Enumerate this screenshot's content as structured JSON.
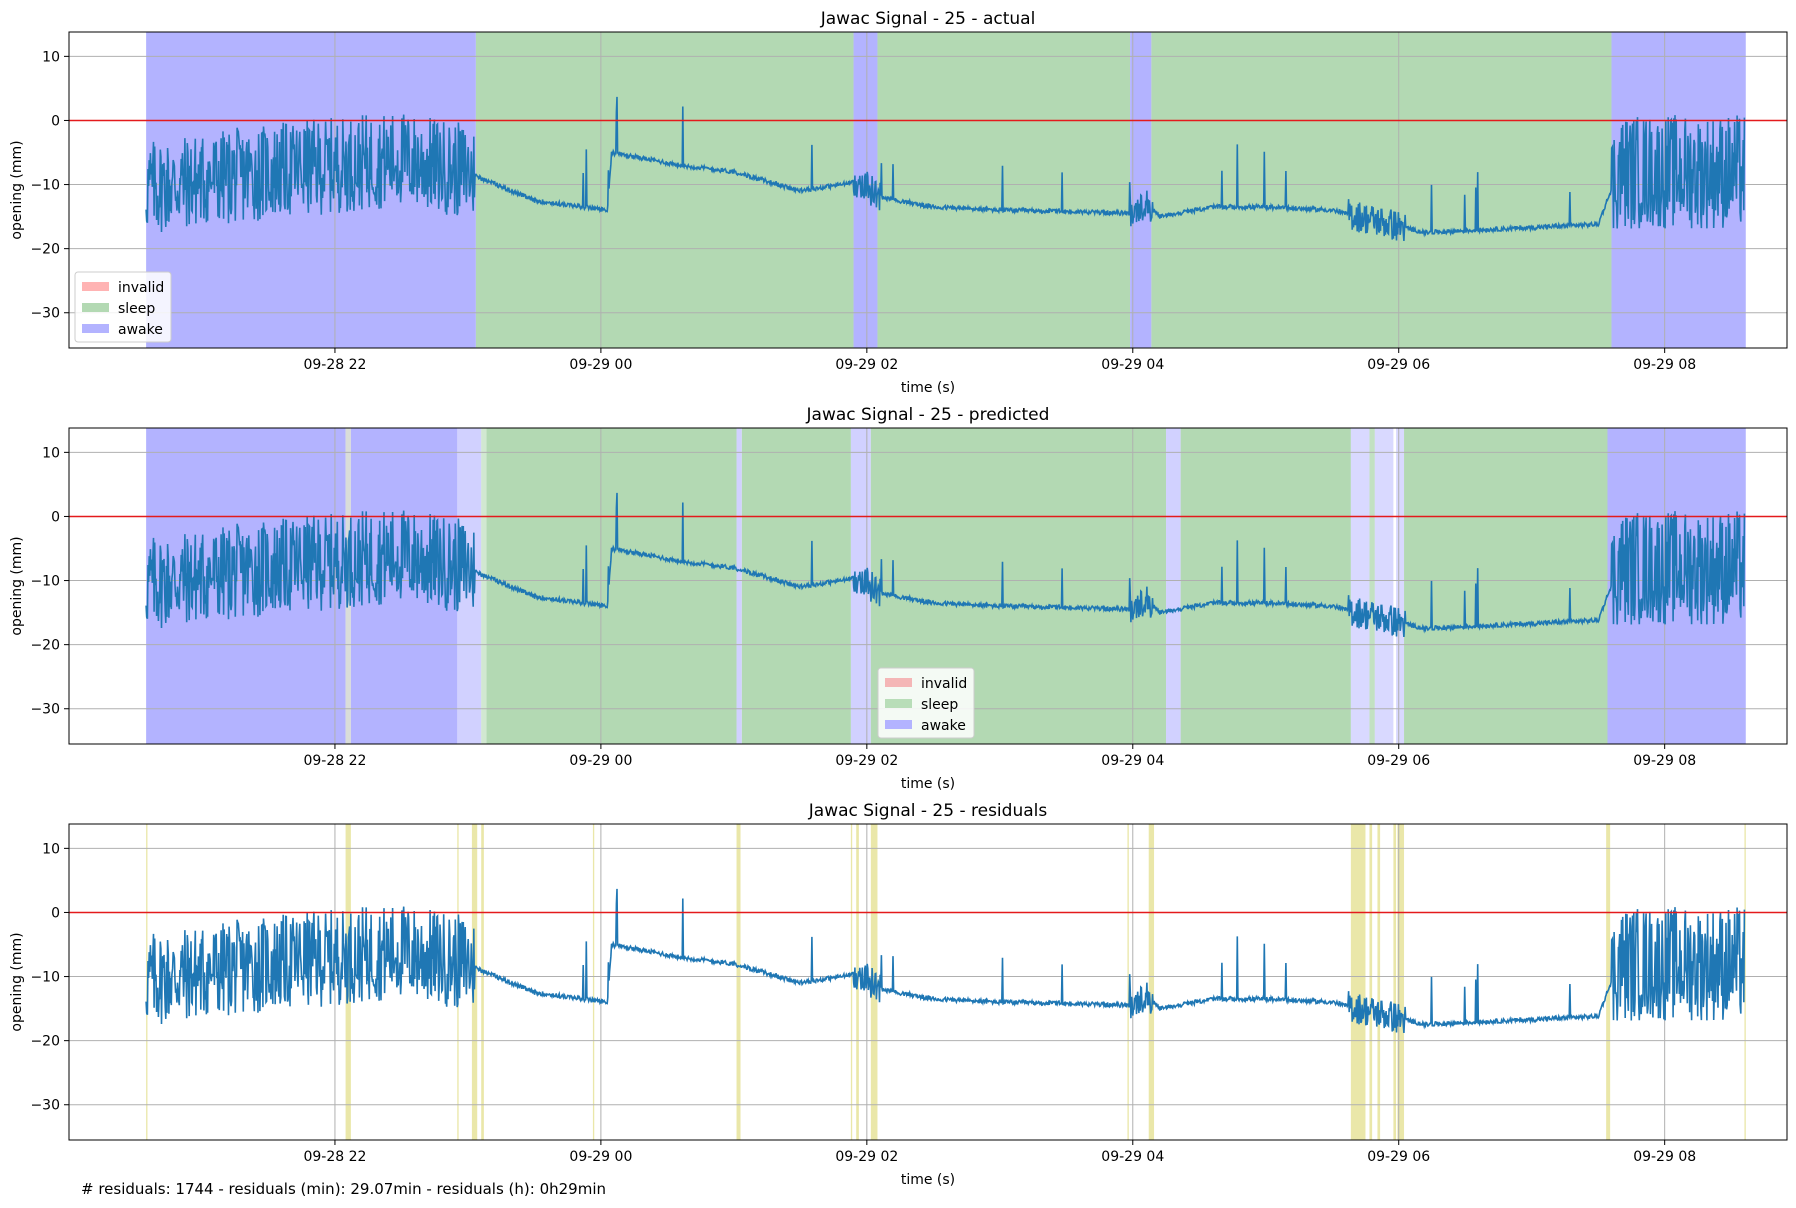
{
  "chart_data": [
    {
      "type": "line",
      "title": "Jawac Signal - 25 - actual",
      "xlabel": "time (s)",
      "ylabel": "opening (mm)",
      "x_ticks": [
        "09-28 22",
        "09-29 00",
        "09-29 02",
        "09-29 04",
        "09-29 06",
        "09-29 08"
      ],
      "y_ticks": [
        "10",
        "0",
        "−10",
        "−20",
        "−30"
      ],
      "xlim_hours": [
        20.0,
        32.92
      ],
      "ylim": [
        -35.5,
        13.8
      ],
      "grid": true,
      "reference_line": {
        "y": 0,
        "color": "#e41a1c"
      },
      "legend": {
        "position": "lower-left",
        "entries": [
          {
            "label": "invalid",
            "color": "#ffb3b3"
          },
          {
            "label": "sleep",
            "color": "#b3d9b3"
          },
          {
            "label": "awake",
            "color": "#b3b3ff"
          }
        ]
      },
      "spans": [
        {
          "label": "awake",
          "from": 20.58,
          "to": 23.06
        },
        {
          "label": "sleep",
          "from": 23.06,
          "to": 25.9
        },
        {
          "label": "awake",
          "from": 25.9,
          "to": 26.08
        },
        {
          "label": "sleep",
          "from": 26.08,
          "to": 27.98
        },
        {
          "label": "awake",
          "from": 27.98,
          "to": 28.14
        },
        {
          "label": "sleep",
          "from": 28.14,
          "to": 31.6
        },
        {
          "label": "awake",
          "from": 31.6,
          "to": 32.61
        }
      ],
      "signal": {
        "color": "#1f77b4",
        "x": [
          20.58,
          21.5,
          22.5,
          23.0,
          23.1,
          23.5,
          24.05,
          24.08,
          24.6,
          25.0,
          25.5,
          25.95,
          26.1,
          26.5,
          27.0,
          27.5,
          28.0,
          28.1,
          28.2,
          28.6,
          29.0,
          29.5,
          29.9,
          30.2,
          30.7,
          31.2,
          31.5,
          31.65,
          32.0,
          32.6
        ],
        "y": [
          -10.5,
          -8,
          -6,
          -8,
          -9,
          -12.5,
          -14,
          -5,
          -7,
          -8,
          -11,
          -9.5,
          -12,
          -13.5,
          -14,
          -14.2,
          -14.5,
          -13,
          -15,
          -13.5,
          -13.5,
          -14,
          -16,
          -17.5,
          -17,
          -16.5,
          -16.2,
          -8,
          -8,
          -8
        ]
      }
    },
    {
      "type": "line",
      "title": "Jawac Signal - 25 - predicted",
      "xlabel": "time (s)",
      "ylabel": "opening (mm)",
      "x_ticks": [
        "09-28 22",
        "09-29 00",
        "09-29 02",
        "09-29 04",
        "09-29 06",
        "09-29 08"
      ],
      "y_ticks": [
        "10",
        "0",
        "−10",
        "−20",
        "−30"
      ],
      "xlim_hours": [
        20.0,
        32.92
      ],
      "ylim": [
        -35.5,
        13.8
      ],
      "grid": true,
      "reference_line": {
        "y": 0,
        "color": "#e41a1c"
      },
      "legend": {
        "position": "lower-center",
        "entries": [
          {
            "label": "invalid",
            "color": "#f4b6b6"
          },
          {
            "label": "sleep",
            "color": "#b8ddb8"
          },
          {
            "label": "awake",
            "color": "#b3b3ff"
          }
        ]
      },
      "spans": [
        {
          "label": "awake",
          "from": 20.58,
          "to": 22.08,
          "alpha": 1
        },
        {
          "label": "mixed",
          "from": 22.08,
          "to": 22.12,
          "alpha": 1
        },
        {
          "label": "awake",
          "from": 22.12,
          "to": 22.92,
          "alpha": 1
        },
        {
          "label": "awake",
          "from": 22.92,
          "to": 23.1,
          "alpha": 0.6
        },
        {
          "label": "sleep",
          "from": 23.1,
          "to": 23.14,
          "alpha": 0.6
        },
        {
          "label": "sleep",
          "from": 23.14,
          "to": 25.02,
          "alpha": 1
        },
        {
          "label": "awake",
          "from": 25.02,
          "to": 25.06,
          "alpha": 0.6
        },
        {
          "label": "sleep",
          "from": 25.06,
          "to": 25.88,
          "alpha": 1
        },
        {
          "label": "awake",
          "from": 25.88,
          "to": 26.03,
          "alpha": 0.6
        },
        {
          "label": "sleep",
          "from": 26.03,
          "to": 28.25,
          "alpha": 1
        },
        {
          "label": "awake",
          "from": 28.25,
          "to": 28.36,
          "alpha": 0.6
        },
        {
          "label": "sleep",
          "from": 28.36,
          "to": 29.64,
          "alpha": 1
        },
        {
          "label": "awake",
          "from": 29.64,
          "to": 29.78,
          "alpha": 0.5
        },
        {
          "label": "sleep",
          "from": 29.78,
          "to": 29.82,
          "alpha": 0.8
        },
        {
          "label": "awake",
          "from": 29.82,
          "to": 29.96,
          "alpha": 0.5
        },
        {
          "label": "awake",
          "from": 29.98,
          "to": 30.04,
          "alpha": 0.5
        },
        {
          "label": "sleep",
          "from": 30.04,
          "to": 31.57,
          "alpha": 1
        },
        {
          "label": "awake",
          "from": 31.57,
          "to": 32.61,
          "alpha": 1
        }
      ],
      "signal": {
        "color": "#1f77b4",
        "x": [
          20.58,
          21.5,
          22.5,
          23.0,
          23.1,
          23.5,
          24.05,
          24.08,
          24.6,
          25.0,
          25.5,
          25.95,
          26.1,
          26.5,
          27.0,
          27.5,
          28.0,
          28.1,
          28.2,
          28.6,
          29.0,
          29.5,
          29.9,
          30.2,
          30.7,
          31.2,
          31.5,
          31.65,
          32.0,
          32.6
        ],
        "y": [
          -10.5,
          -8,
          -6,
          -8,
          -9,
          -12.5,
          -14,
          -5,
          -7,
          -8,
          -11,
          -9.5,
          -12,
          -13.5,
          -14,
          -14.2,
          -14.5,
          -13,
          -15,
          -13.5,
          -13.5,
          -14,
          -16,
          -17.5,
          -17,
          -16.5,
          -16.2,
          -8,
          -8,
          -8
        ]
      }
    },
    {
      "type": "line",
      "title": "Jawac Signal - 25 - residuals",
      "xlabel": "time (s)",
      "ylabel": "opening (mm)",
      "x_ticks": [
        "09-28 22",
        "09-29 00",
        "09-29 02",
        "09-29 04",
        "09-29 06",
        "09-29 08"
      ],
      "y_ticks": [
        "10",
        "0",
        "−10",
        "−20",
        "−30"
      ],
      "xlim_hours": [
        20.0,
        32.92
      ],
      "ylim": [
        -35.5,
        13.8
      ],
      "grid": true,
      "reference_line": {
        "y": 0,
        "color": "#e41a1c"
      },
      "residual_color": "#e6e39a",
      "residual_spans": [
        {
          "from": 20.58,
          "to": 20.59
        },
        {
          "from": 22.08,
          "to": 22.12
        },
        {
          "from": 22.92,
          "to": 22.93
        },
        {
          "from": 23.03,
          "to": 23.07
        },
        {
          "from": 23.1,
          "to": 23.12
        },
        {
          "from": 23.94,
          "to": 23.95
        },
        {
          "from": 25.02,
          "to": 25.05
        },
        {
          "from": 25.88,
          "to": 25.89
        },
        {
          "from": 25.92,
          "to": 25.94
        },
        {
          "from": 26.03,
          "to": 26.08
        },
        {
          "from": 27.96,
          "to": 27.97
        },
        {
          "from": 28.12,
          "to": 28.16
        },
        {
          "from": 29.64,
          "to": 29.75
        },
        {
          "from": 29.78,
          "to": 29.8
        },
        {
          "from": 29.84,
          "to": 29.86
        },
        {
          "from": 29.96,
          "to": 29.98
        },
        {
          "from": 29.99,
          "to": 30.04
        },
        {
          "from": 31.56,
          "to": 31.59
        },
        {
          "from": 32.6,
          "to": 32.61
        }
      ],
      "signal": {
        "color": "#1f77b4",
        "x": [
          20.58,
          21.5,
          22.5,
          23.0,
          23.1,
          23.5,
          24.05,
          24.08,
          24.6,
          25.0,
          25.5,
          25.95,
          26.1,
          26.5,
          27.0,
          27.5,
          28.0,
          28.1,
          28.2,
          28.6,
          29.0,
          29.5,
          29.9,
          30.2,
          30.7,
          31.2,
          31.5,
          31.65,
          32.0,
          32.6
        ],
        "y": [
          -10.5,
          -8,
          -6,
          -8,
          -9,
          -12.5,
          -14,
          -5,
          -7,
          -8,
          -11,
          -9.5,
          -12,
          -13.5,
          -14,
          -14.2,
          -14.5,
          -13,
          -15,
          -13.5,
          -13.5,
          -14,
          -16,
          -17.5,
          -17,
          -16.5,
          -16.2,
          -8,
          -8,
          -8
        ]
      }
    }
  ],
  "footer": "# residuals: 1744 - residuals (min): 29.07min - residuals (h): 0h29min"
}
